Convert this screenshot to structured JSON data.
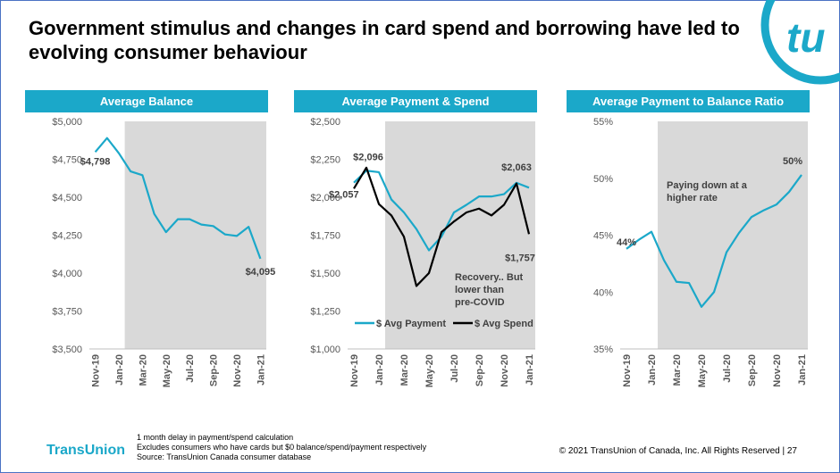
{
  "title": "Government stimulus and changes in card spend and borrowing have led to evolving consumer behaviour",
  "brand": "TransUnion",
  "logo_text": "tu",
  "footnotes": [
    "1 month delay in payment/spend calculation",
    "Excludes consumers who have cards but $0 balance/spend/payment respectively",
    "Source: TransUnion Canada consumer database"
  ],
  "copyright": "© 2021 TransUnion of Canada, Inc.  All Rights Reserved |   27",
  "colors": {
    "accent": "#1ba8c9",
    "shade": "#d9d9d9",
    "spend": "#000000"
  },
  "chart_data": [
    {
      "type": "line",
      "title": "Average Balance",
      "x": [
        "Nov-19",
        "Dec-19",
        "Jan-20",
        "Feb-20",
        "Mar-20",
        "Apr-20",
        "May-20",
        "Jun-20",
        "Jul-20",
        "Aug-20",
        "Sep-20",
        "Oct-20",
        "Nov-20",
        "Dec-20",
        "Jan-21"
      ],
      "x_tick_labels": [
        "Nov-19",
        "Jan-20",
        "Mar-20",
        "May-20",
        "Jul-20",
        "Sep-20",
        "Nov-20",
        "Jan-21"
      ],
      "y_tick_labels": [
        "$5,000",
        "$4,750",
        "$4,500",
        "$4,250",
        "$4,000",
        "$3,750",
        "$3,500"
      ],
      "ylim": [
        3500,
        5000
      ],
      "shaded_from": "Feb-20",
      "series": [
        {
          "values": [
            4798,
            4890,
            4790,
            4670,
            4645,
            4390,
            4270,
            4355,
            4355,
            4320,
            4310,
            4255,
            4245,
            4305,
            4095
          ]
        }
      ],
      "data_labels": [
        "$4,798",
        "$4,095"
      ]
    },
    {
      "type": "line",
      "title": "Average Payment & Spend",
      "x": [
        "Nov-19",
        "Dec-19",
        "Jan-20",
        "Feb-20",
        "Mar-20",
        "Apr-20",
        "May-20",
        "Jun-20",
        "Jul-20",
        "Aug-20",
        "Sep-20",
        "Oct-20",
        "Nov-20",
        "Dec-20",
        "Jan-21"
      ],
      "x_tick_labels": [
        "Nov-19",
        "Jan-20",
        "Mar-20",
        "May-20",
        "Jul-20",
        "Sep-20",
        "Nov-20",
        "Jan-21"
      ],
      "y_tick_labels": [
        "$2,500",
        "$2,250",
        "$2,000",
        "$1,750",
        "$1,500",
        "$1,250",
        "$1,000"
      ],
      "ylim": [
        1000,
        2500
      ],
      "shaded_from": "Feb-20",
      "series": [
        {
          "name": "$ Avg Payment",
          "values": [
            2096,
            2175,
            2165,
            1985,
            1900,
            1790,
            1650,
            1740,
            1900,
            1950,
            2005,
            2005,
            2020,
            2095,
            2063
          ]
        },
        {
          "name": "$ Avg Spend",
          "values": [
            2057,
            2195,
            1955,
            1880,
            1740,
            1415,
            1500,
            1770,
            1840,
            1900,
            1925,
            1880,
            1950,
            2090,
            1757
          ]
        }
      ],
      "data_labels": [
        "$2,096",
        "$2,057",
        "$2,063",
        "$1,757"
      ],
      "annotation": "Recovery.. But lower than pre-COVID",
      "legend": "bottom"
    },
    {
      "type": "line",
      "title": "Average Payment to Balance Ratio",
      "x": [
        "Nov-19",
        "Dec-19",
        "Jan-20",
        "Feb-20",
        "Mar-20",
        "Apr-20",
        "May-20",
        "Jun-20",
        "Jul-20",
        "Aug-20",
        "Sep-20",
        "Oct-20",
        "Nov-20",
        "Dec-20",
        "Jan-21"
      ],
      "x_tick_labels": [
        "Nov-19",
        "Jan-20",
        "Mar-20",
        "May-20",
        "Jul-20",
        "Sep-20",
        "Nov-20",
        "Jan-21"
      ],
      "y_tick_labels": [
        "55%",
        "50%",
        "45%",
        "40%",
        "35%"
      ],
      "ylim": [
        35,
        55
      ],
      "shaded_from": "Feb-20",
      "series": [
        {
          "values": [
            43.8,
            44.6,
            45.3,
            42.8,
            40.9,
            40.8,
            38.7,
            40.0,
            43.5,
            45.2,
            46.6,
            47.2,
            47.7,
            48.8,
            50.3
          ]
        }
      ],
      "data_labels": [
        "44%",
        "50%"
      ],
      "annotation": "Paying down at a higher rate"
    }
  ]
}
